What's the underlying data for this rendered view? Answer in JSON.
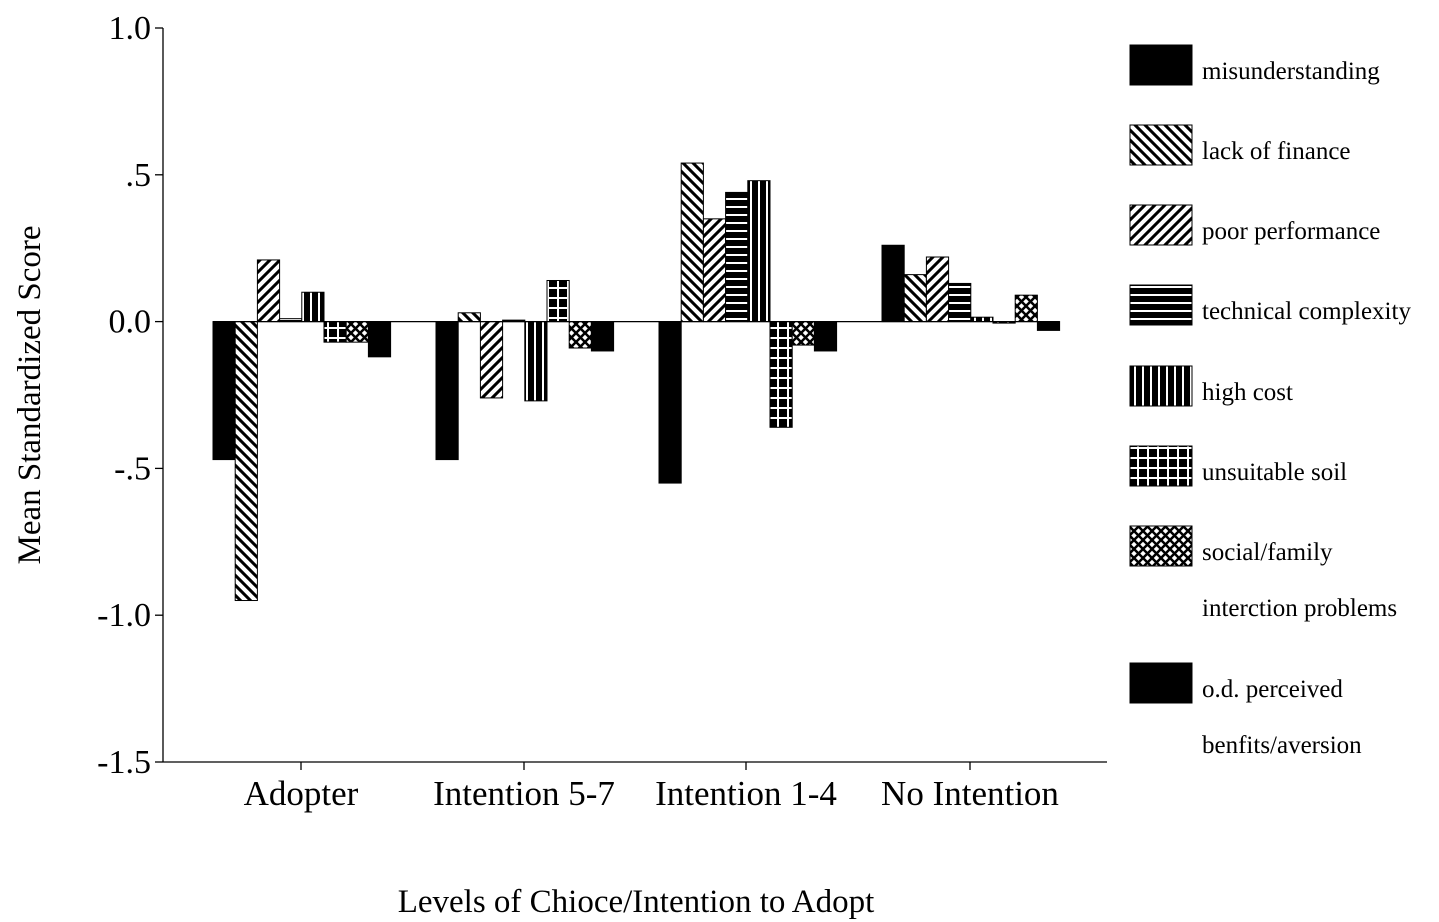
{
  "chart_data": {
    "type": "bar",
    "title": "",
    "xlabel": "Levels of Chioce/Intention to Adopt",
    "ylabel": "Mean Standardized Score",
    "ylim": [
      -1.5,
      1.0
    ],
    "y_ticks": [
      {
        "value": 1.0,
        "label": "1.0"
      },
      {
        "value": 0.5,
        "label": ".5"
      },
      {
        "value": 0.0,
        "label": "0.0"
      },
      {
        "value": -0.5,
        "label": "-.5"
      },
      {
        "value": -1.0,
        "label": "-1.0"
      },
      {
        "value": -1.5,
        "label": "-1.5"
      }
    ],
    "categories": [
      "Adopter",
      "Intention 5-7",
      "Intention 1-4",
      "No Intention"
    ],
    "legend_position": "right",
    "grid": false,
    "series": [
      {
        "name": "misunderstanding",
        "label_lines": [
          "misunderstanding"
        ],
        "pattern": "solid",
        "values": [
          -0.47,
          -0.47,
          -0.55,
          0.26
        ]
      },
      {
        "name": "lack of finance",
        "label_lines": [
          "lack of finance"
        ],
        "pattern": "back-diagonal",
        "values": [
          -0.95,
          0.03,
          0.54,
          0.16
        ]
      },
      {
        "name": "poor performance",
        "label_lines": [
          "poor performance"
        ],
        "pattern": "forward-diagonal",
        "values": [
          0.21,
          -0.26,
          0.35,
          0.22
        ]
      },
      {
        "name": "technical complexity",
        "label_lines": [
          "technical complexity"
        ],
        "pattern": "horizontal",
        "values": [
          0.01,
          0.005,
          0.44,
          0.13
        ]
      },
      {
        "name": "high cost",
        "label_lines": [
          "high cost"
        ],
        "pattern": "vertical",
        "values": [
          0.1,
          -0.27,
          0.48,
          0.015
        ]
      },
      {
        "name": "unsuitable soil",
        "label_lines": [
          "unsuitable soil"
        ],
        "pattern": "grid",
        "values": [
          -0.07,
          0.14,
          -0.36,
          -0.005
        ]
      },
      {
        "name": "social/family interction problems",
        "label_lines": [
          "social/family",
          "interction problems"
        ],
        "pattern": "crosshatch",
        "values": [
          -0.07,
          -0.09,
          -0.08,
          0.09
        ]
      },
      {
        "name": "o.d. perceived benfits/aversion",
        "label_lines": [
          "o.d. perceived",
          "benfits/aversion"
        ],
        "pattern": "solid",
        "values": [
          -0.12,
          -0.1,
          -0.1,
          -0.03
        ]
      }
    ]
  }
}
